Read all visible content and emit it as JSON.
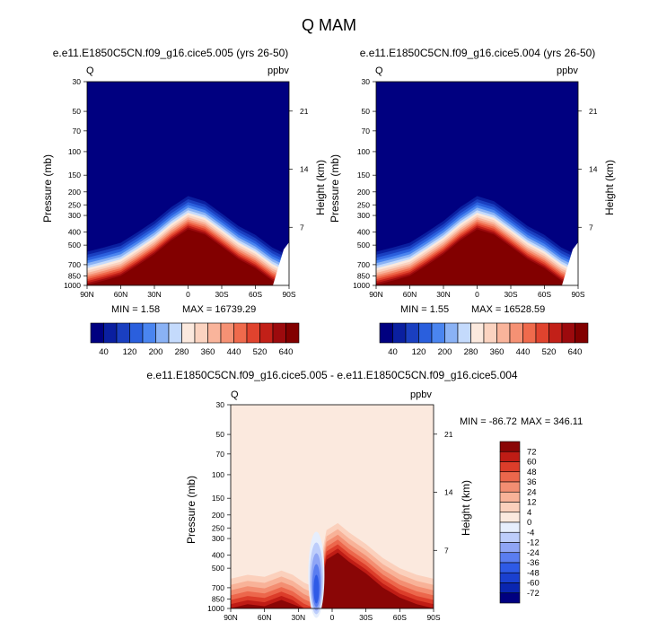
{
  "page": {
    "title": "Q MAM"
  },
  "colors": {
    "abs_scale": [
      "#000080",
      "#0a1fa0",
      "#1a3fc0",
      "#2a5fdd",
      "#4a85f0",
      "#8ab2f5",
      "#c4dafc",
      "#fbe9de",
      "#fbd3c0",
      "#f9b49b",
      "#f59174",
      "#ef6a4c",
      "#e0432e",
      "#c22018",
      "#9c0a0d",
      "#820000"
    ],
    "diff_scale": [
      "#000080",
      "#0a26b0",
      "#1a40d0",
      "#2e5ae6",
      "#5a7df0",
      "#8fa5f5",
      "#bdcdfb",
      "#e6eefd",
      "#fbe9de",
      "#fbd0bc",
      "#f8b298",
      "#f38e72",
      "#ec674c",
      "#dc3d2a",
      "#bf1c15",
      "#8a0606"
    ]
  },
  "chart_data": [
    {
      "type": "heatmap",
      "id": "left",
      "title": "e.e11.E1850C5CN.f09_g16.cice5.005 (yrs 26-50)",
      "var_label": "Q",
      "units": "ppbv",
      "xlabel": "",
      "ylabel": "Pressure (mb)",
      "ylabel_right": "Height (km)",
      "x_ticks": [
        "90N",
        "60N",
        "30N",
        "0",
        "30S",
        "60S",
        "90S"
      ],
      "y_ticks": [
        "30",
        "50",
        "70",
        "100",
        "150",
        "200",
        "250",
        "300",
        "400",
        "500",
        "700",
        "850",
        "1000"
      ],
      "y_values": [
        30,
        50,
        70,
        100,
        150,
        200,
        250,
        300,
        400,
        500,
        700,
        850,
        1000
      ],
      "right_ticks": [
        "21",
        "14",
        "7"
      ],
      "right_values": [
        21,
        14,
        7
      ],
      "min_label": "MIN =   1.58",
      "max_label": "MAX = 16739.29",
      "colorbar_labels": [
        "40",
        "120",
        "200",
        "280",
        "360",
        "440",
        "520",
        "640"
      ],
      "colorbar_levels": [
        40,
        80,
        120,
        160,
        200,
        240,
        280,
        320,
        360,
        400,
        440,
        480,
        520,
        560,
        640
      ],
      "field_profile": [
        {
          "lat": 90,
          "p": 560
        },
        {
          "lat": 75,
          "p": 520
        },
        {
          "lat": 60,
          "p": 480
        },
        {
          "lat": 45,
          "p": 400
        },
        {
          "lat": 30,
          "p": 330
        },
        {
          "lat": 15,
          "p": 260
        },
        {
          "lat": 0,
          "p": 215
        },
        {
          "lat": -15,
          "p": 235
        },
        {
          "lat": -30,
          "p": 290
        },
        {
          "lat": -45,
          "p": 360
        },
        {
          "lat": -60,
          "p": 420
        },
        {
          "lat": -75,
          "p": 520
        },
        {
          "lat": -90,
          "p": 600
        }
      ]
    },
    {
      "type": "heatmap",
      "id": "right",
      "title": "e.e11.E1850C5CN.f09_g16.cice5.004 (yrs 26-50)",
      "var_label": "Q",
      "units": "ppbv",
      "xlabel": "",
      "ylabel": "Pressure (mb)",
      "ylabel_right": "Height (km)",
      "x_ticks": [
        "90N",
        "60N",
        "30N",
        "0",
        "30S",
        "60S",
        "90S"
      ],
      "y_ticks": [
        "30",
        "50",
        "70",
        "100",
        "150",
        "200",
        "250",
        "300",
        "400",
        "500",
        "700",
        "850",
        "1000"
      ],
      "y_values": [
        30,
        50,
        70,
        100,
        150,
        200,
        250,
        300,
        400,
        500,
        700,
        850,
        1000
      ],
      "right_ticks": [
        "21",
        "14",
        "7"
      ],
      "right_values": [
        21,
        14,
        7
      ],
      "min_label": "MIN =   1.55",
      "max_label": "MAX = 16528.59",
      "colorbar_labels": [
        "40",
        "120",
        "200",
        "280",
        "360",
        "440",
        "520",
        "640"
      ],
      "colorbar_levels": [
        40,
        80,
        120,
        160,
        200,
        240,
        280,
        320,
        360,
        400,
        440,
        480,
        520,
        560,
        640
      ],
      "field_profile": [
        {
          "lat": 90,
          "p": 560
        },
        {
          "lat": 75,
          "p": 520
        },
        {
          "lat": 60,
          "p": 480
        },
        {
          "lat": 45,
          "p": 400
        },
        {
          "lat": 30,
          "p": 330
        },
        {
          "lat": 15,
          "p": 260
        },
        {
          "lat": 0,
          "p": 215
        },
        {
          "lat": -15,
          "p": 235
        },
        {
          "lat": -30,
          "p": 290
        },
        {
          "lat": -45,
          "p": 360
        },
        {
          "lat": -60,
          "p": 420
        },
        {
          "lat": -75,
          "p": 520
        },
        {
          "lat": -90,
          "p": 600
        }
      ]
    },
    {
      "type": "heatmap",
      "id": "diff",
      "title": "e.e11.E1850C5CN.f09_g16.cice5.005 - e.e11.E1850C5CN.f09_g16.cice5.004",
      "var_label": "Q",
      "units": "ppbv",
      "xlabel": "",
      "ylabel": "Pressure (mb)",
      "ylabel_right": "Height (km)",
      "x_ticks": [
        "90N",
        "60N",
        "30N",
        "0",
        "30S",
        "60S",
        "90S"
      ],
      "y_ticks": [
        "30",
        "50",
        "70",
        "100",
        "150",
        "200",
        "250",
        "300",
        "400",
        "500",
        "700",
        "850",
        "1000"
      ],
      "y_values": [
        30,
        50,
        70,
        100,
        150,
        200,
        250,
        300,
        400,
        500,
        700,
        850,
        1000
      ],
      "right_ticks": [
        "21",
        "14",
        "7"
      ],
      "right_values": [
        21,
        14,
        7
      ],
      "min_label": "MIN = -86.72",
      "max_label": "MAX = 346.11",
      "colorbar_labels": [
        "72",
        "60",
        "48",
        "36",
        "24",
        "12",
        "4",
        "0",
        "-4",
        "-12",
        "-24",
        "-36",
        "-48",
        "-60",
        "-72"
      ],
      "colorbar_levels": [
        -72,
        -60,
        -48,
        -36,
        -24,
        -12,
        -4,
        0,
        4,
        12,
        24,
        36,
        48,
        60,
        72
      ]
    }
  ]
}
